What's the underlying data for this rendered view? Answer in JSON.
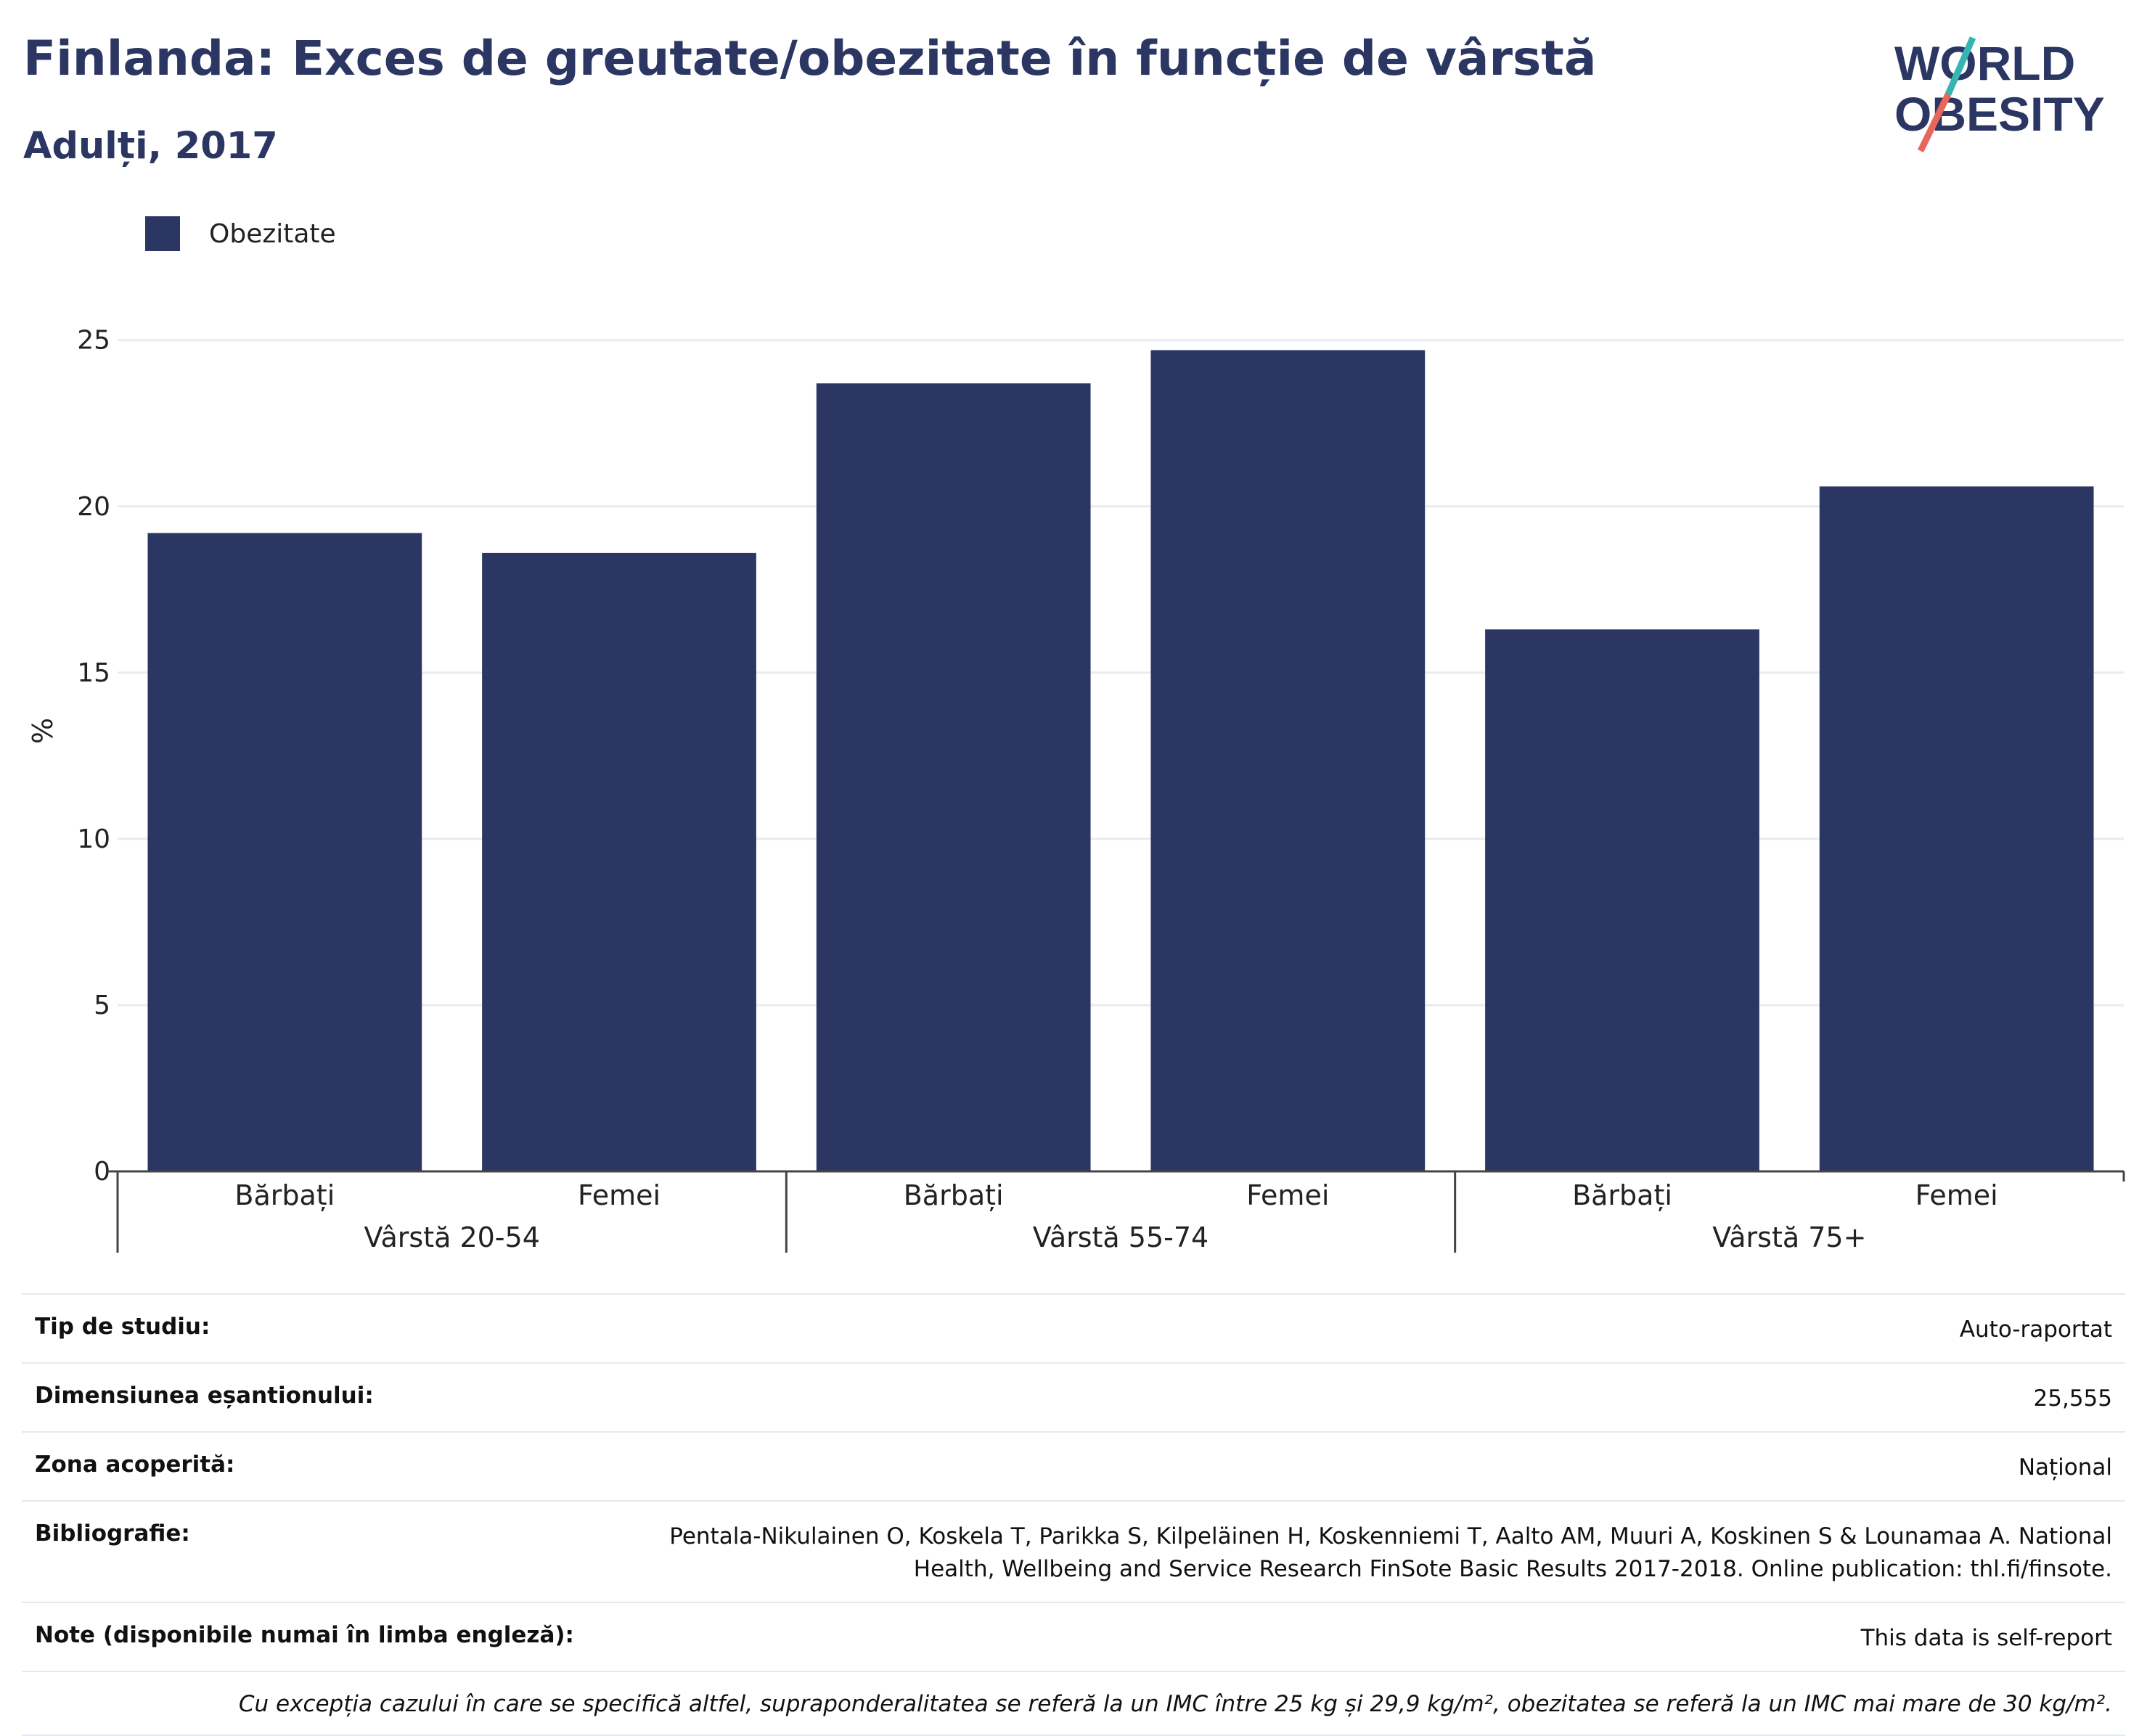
{
  "header": {
    "title": "Finlanda: Exces de greutate/obezitate în funcție de vârstă",
    "subtitle": "Adulți, 2017"
  },
  "logo": {
    "line1": "WORLD",
    "line2": "OBESITY",
    "colors": {
      "navy": "#2b3663",
      "teal": "#36b6b0",
      "coral": "#e8675a"
    }
  },
  "legend": {
    "label": "Obezitate",
    "color": "#2b3663"
  },
  "chart_data": {
    "type": "bar",
    "ylabel": "%",
    "ylim": [
      0,
      26.5
    ],
    "yticks": [
      0,
      5,
      10,
      15,
      20,
      25
    ],
    "grid": true,
    "bar_color": "#2b3663",
    "groups": [
      {
        "label": "Vârstă 20-54",
        "categories": [
          "Bărbați",
          "Femei"
        ],
        "values": [
          19.2,
          18.6
        ]
      },
      {
        "label": "Vârstă 55-74",
        "categories": [
          "Bărbați",
          "Femei"
        ],
        "values": [
          23.7,
          24.7
        ]
      },
      {
        "label": "Vârstă 75+",
        "categories": [
          "Bărbați",
          "Femei"
        ],
        "values": [
          16.3,
          20.6
        ]
      }
    ],
    "series": [
      {
        "name": "Obezitate",
        "values": [
          19.2,
          18.6,
          23.7,
          24.7,
          16.3,
          20.6
        ]
      }
    ]
  },
  "info": {
    "rows": [
      {
        "key": "Tip de studiu:",
        "value": "Auto-raportat"
      },
      {
        "key": "Dimensiunea eșantionului:",
        "value": "25,555"
      },
      {
        "key": "Zona acoperită:",
        "value": "Național"
      },
      {
        "key": "Bibliografie:",
        "value": "Pentala-Nikulainen O, Koskela T, Parikka S, Kilpeläinen H, Koskenniemi T, Aalto AM, Muuri A, Koskinen S & Lounamaa A. National Health, Wellbeing and Service Research FinSote Basic Results 2017-2018. Online publication: thl.fi/finsote."
      },
      {
        "key": "Note (disponibile numai în limba engleză):",
        "value": "This data is self-report"
      }
    ],
    "note": "Cu excepția cazului în care se specifică altfel, supraponderalitatea se referă la un IMC între 25 kg și 29,9 kg/m², obezitatea se referă la un IMC mai mare de 30 kg/m²."
  }
}
